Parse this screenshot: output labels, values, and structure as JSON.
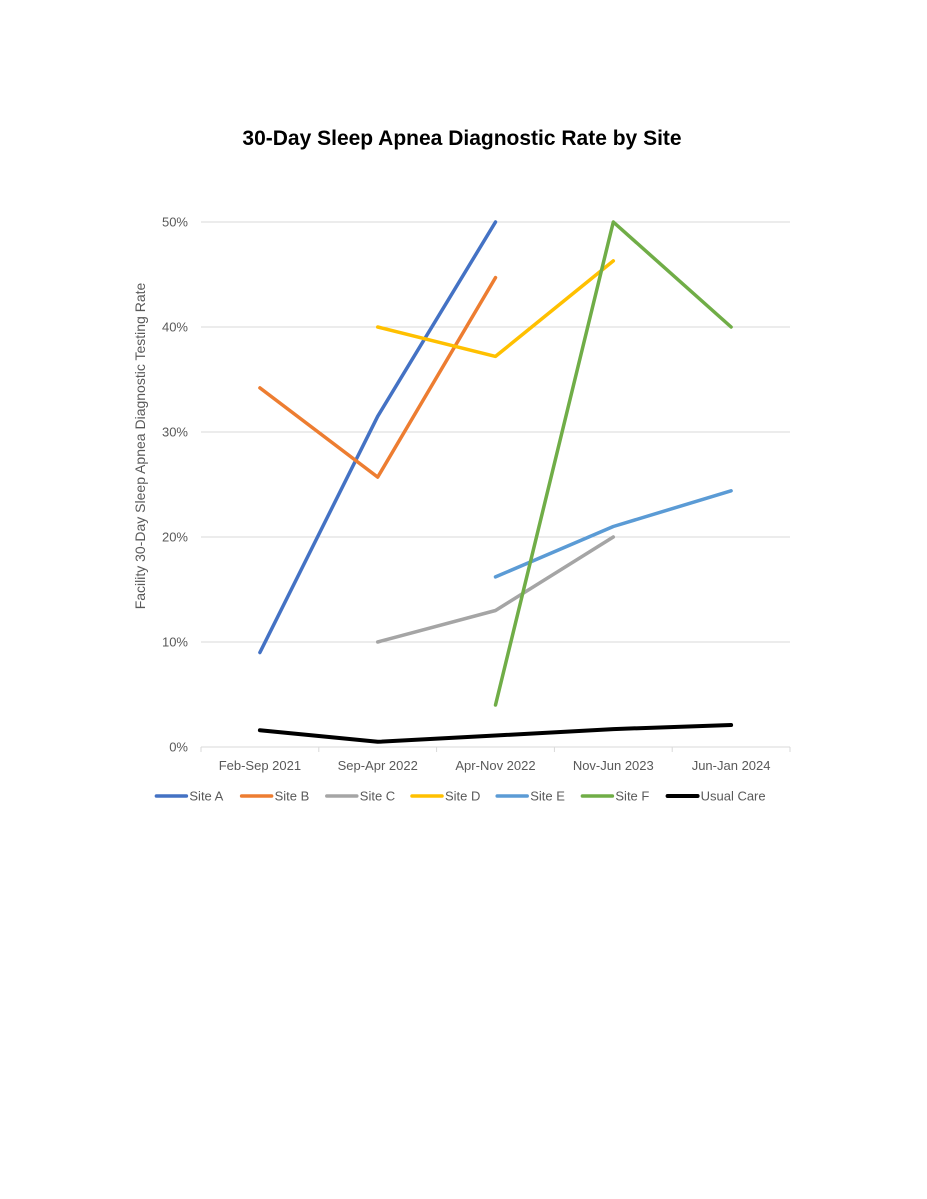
{
  "chart_data": {
    "type": "line",
    "title": "30-Day Sleep Apnea Diagnostic Rate by Site",
    "xlabel": "",
    "ylabel": "Facility 30-Day Sleep Apnea Diagnostic Testing Rate",
    "categories": [
      "Feb-Sep 2021",
      "Sep-Apr 2022",
      "Apr-Nov 2022",
      "Nov-Jun 2023",
      "Jun-Jan 2024"
    ],
    "ylim": [
      0,
      50
    ],
    "yticks": [
      "0%",
      "10%",
      "20%",
      "30%",
      "40%",
      "50%"
    ],
    "grid": true,
    "legend": "bottom",
    "series": [
      {
        "name": "Site A",
        "color": "#4472C4",
        "values": [
          9,
          31.5,
          50,
          null,
          null
        ]
      },
      {
        "name": "Site B",
        "color": "#ED7D31",
        "values": [
          34.2,
          25.7,
          44.7,
          null,
          null
        ]
      },
      {
        "name": "Site C",
        "color": "#A5A5A5",
        "values": [
          null,
          10,
          13,
          20,
          null
        ]
      },
      {
        "name": "Site D",
        "color": "#FFC000",
        "values": [
          null,
          40,
          37.2,
          46.3,
          null
        ]
      },
      {
        "name": "Site E",
        "color": "#5B9BD5",
        "values": [
          null,
          null,
          16.2,
          21,
          24.4
        ]
      },
      {
        "name": "Site F",
        "color": "#70AD47",
        "values": [
          null,
          null,
          4,
          50,
          40
        ]
      },
      {
        "name": "Usual Care",
        "color": "#000000",
        "values": [
          1.6,
          0.5,
          1.1,
          1.7,
          2.1
        ]
      }
    ]
  }
}
